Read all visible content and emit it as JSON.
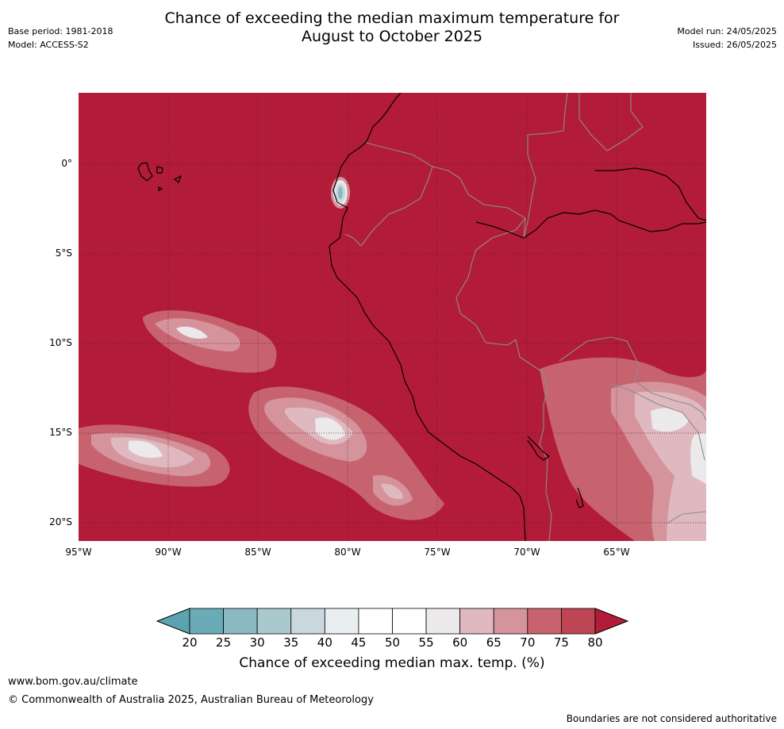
{
  "header": {
    "title_line1": "Chance of exceeding the median maximum temperature for",
    "title_line2": "August to October 2025",
    "base_period": "Base period: 1981-2018",
    "model": "Model: ACCESS-S2",
    "model_run": "Model run: 24/05/2025",
    "issued": "Issued: 26/05/2025"
  },
  "map": {
    "latitude_labels": [
      "0°",
      "5°S",
      "10°S",
      "15°S",
      "20°S"
    ],
    "longitude_labels": [
      "95°W",
      "90°W",
      "85°W",
      "80°W",
      "75°W",
      "70°W",
      "65°W"
    ],
    "background_color": "#b21c38",
    "gridlines": true
  },
  "colorbar": {
    "ticks": [
      "20",
      "25",
      "30",
      "35",
      "40",
      "45",
      "50",
      "55",
      "60",
      "65",
      "70",
      "75",
      "80"
    ],
    "label": "Chance of exceeding median max. temp. (%)",
    "colors": [
      "#6aabb8",
      "#8ab9c4",
      "#a9c9cf",
      "#c9d8dc",
      "#e9eef0",
      "#ffffff",
      "#ffffff",
      "#ebe9ea",
      "#dfb9bf",
      "#d5939c",
      "#c7636f",
      "#bd4554"
    ],
    "under_color": "#5ba3b1",
    "over_color": "#b21c38"
  },
  "footer": {
    "website": "www.bom.gov.au/climate",
    "copyright": "© Commonwealth of Australia 2025, Australian Bureau of Meteorology",
    "disclaimer": "Boundaries are not considered authoritative"
  }
}
